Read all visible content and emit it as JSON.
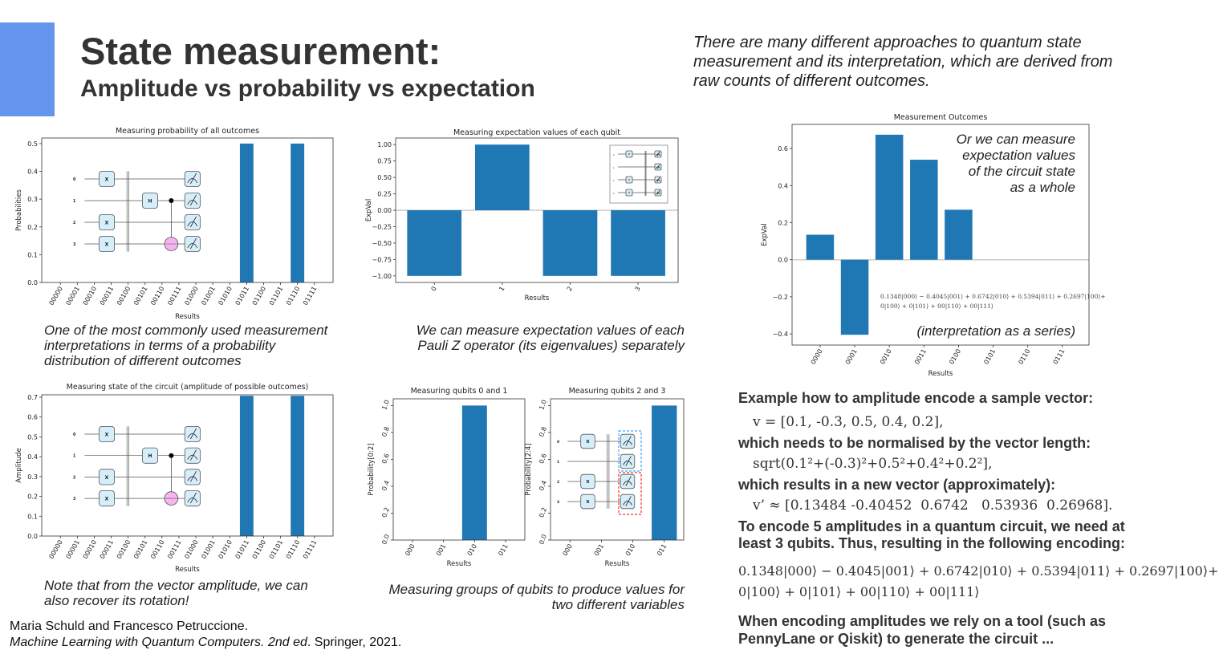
{
  "slide": {
    "title": "State measurement:",
    "subtitle": "Amplitude vs probability vs expectation",
    "intro": "There are many different approaches to quantum state measurement and its interpretation, which are derived from raw counts of different outcomes.",
    "accent_color": "#6495ed"
  },
  "captions": {
    "probability": "One of the most commonly used measurement interpretations in terms of a probability distribution of different outcomes",
    "expectation": "We can measure expectation values of each Pauli Z operator (its eigenvalues) separately",
    "amplitude": "Note that from the vector amplitude, we can also recover its rotation!",
    "groups": "Measuring groups of qubits to produce values for two different variables"
  },
  "citation": {
    "authors": "Maria Schuld and Francesco Petruccione.",
    "book": "Machine Learning with Quantum Computers. 2nd ed",
    "rest": ". Springer, 2021."
  },
  "circuit": {
    "wire_labels": [
      "0",
      "1",
      "2",
      "3"
    ],
    "x_gate": "X",
    "h_gate": "H"
  },
  "chart_notes": {
    "whole_state": [
      "Or we can measure",
      "expectation values",
      "of the circuit state",
      "as a whole"
    ],
    "series_formula_1": "0.1348|000⟩ − 0.4045|001⟩ + 0.6742|010⟩ + 0.5394|011⟩ + 0.2697|100⟩+",
    "series_formula_2": "0|100⟩ + 0|101⟩ + 00|110⟩ + 00|111⟩",
    "series_label": "(interpretation as a series)"
  },
  "encoding": {
    "heading": "Example how to amplitude encode a sample vector:",
    "vector": "v = [0.1, -0.3, 0.5, 0.4, 0.2],",
    "normalise": "which needs to be normalised by the vector length:",
    "sqrt": "sqrt(0.1²+(-0.3)²+0.5²+0.4²+0.2²],",
    "results_in": "which results in a new vector (approximately):",
    "new_vector": "v’ ≈ [0.13484 -0.40452  0.6742   0.53936  0.26968].",
    "qubits_1": "To encode 5 amplitudes in a quantum circuit, we need at",
    "qubits_2": "least 3 qubits. Thus, resulting in the following encoding:",
    "formula_1": "0.1348|000⟩ − 0.4045|001⟩ + 0.6742|010⟩ + 0.5394|011⟩ + 0.2697|100⟩+",
    "formula_2": "0|100⟩ + 0|101⟩ + 00|110⟩ + 00|111⟩",
    "tool_1": "When encoding amplitudes we rely on a tool (such as",
    "tool_2": "PennyLane or Qiskit) to generate the circuit ..."
  },
  "chart_data": [
    {
      "id": "probability",
      "type": "bar",
      "title": "Measuring probability of all outcomes",
      "xlabel": "Results",
      "ylabel": "Probabilities",
      "categories": [
        "00000",
        "00001",
        "00010",
        "00011",
        "00100",
        "00101",
        "00110",
        "00111",
        "01000",
        "01001",
        "01010",
        "01011",
        "01100",
        "01101",
        "01110",
        "01111"
      ],
      "values": [
        0,
        0,
        0,
        0,
        0,
        0,
        0,
        0,
        0,
        0,
        0,
        0.5,
        0,
        0,
        0.5,
        0
      ],
      "ylim": [
        0,
        0.52
      ],
      "yticks": [
        0.0,
        0.1,
        0.2,
        0.3,
        0.4,
        0.5
      ],
      "ytick_labels": [
        "0.0",
        "0.1",
        "0.2",
        "0.3",
        "0.4",
        "0.5"
      ],
      "bar_color": "#1f77b4",
      "grid": false
    },
    {
      "id": "expectation",
      "type": "bar",
      "title": "Measuring expectation values of each qubit",
      "xlabel": "Results",
      "ylabel": "ExpVal",
      "categories": [
        "0",
        "1",
        "2",
        "3"
      ],
      "values": [
        -1,
        1,
        -1,
        -1
      ],
      "ylim": [
        -1.1,
        1.1
      ],
      "yticks": [
        -1,
        -0.75,
        -0.5,
        -0.25,
        0,
        0.25,
        0.5,
        0.75,
        1
      ],
      "ytick_labels": [
        "−1.00",
        "−0.75",
        "−0.50",
        "−0.25",
        "0.00",
        "0.25",
        "0.50",
        "0.75",
        "1.00"
      ],
      "bar_color": "#1f77b4",
      "grid": false
    },
    {
      "id": "amplitude",
      "type": "bar",
      "title": "Measuring state of the circuit (amplitude of possible outcomes)",
      "xlabel": "Results",
      "ylabel": "Amplitude",
      "categories": [
        "00000",
        "00001",
        "00010",
        "00011",
        "00100",
        "00101",
        "00110",
        "00111",
        "01000",
        "01001",
        "01010",
        "01011",
        "01100",
        "01101",
        "01110",
        "01111"
      ],
      "values": [
        0,
        0,
        0,
        0,
        0,
        0,
        0,
        0,
        0,
        0,
        0,
        0.707,
        0,
        0,
        0.707,
        0
      ],
      "ylim": [
        0,
        0.712
      ],
      "yticks": [
        0.0,
        0.1,
        0.2,
        0.3,
        0.4,
        0.5,
        0.6,
        0.7
      ],
      "ytick_labels": [
        "0.0",
        "0.1",
        "0.2",
        "0.3",
        "0.4",
        "0.5",
        "0.6",
        "0.7"
      ],
      "bar_color": "#1f77b4",
      "grid": false
    },
    {
      "id": "qubits01",
      "type": "bar",
      "title": "Measuring qubits 0 and 1",
      "xlabel": "Results",
      "ylabel": "Probability[0:2]",
      "categories": [
        "000",
        "001",
        "010",
        "011"
      ],
      "values": [
        0,
        0,
        1.0,
        0
      ],
      "ylim": [
        0,
        1.05
      ],
      "yticks": [
        0.0,
        0.2,
        0.4,
        0.6,
        0.8,
        1.0
      ],
      "ytick_labels": [
        "0.0",
        "0.2",
        "0.4",
        "0.6",
        "0.8",
        "1.0"
      ],
      "bar_color": "#1f77b4",
      "grid": false
    },
    {
      "id": "qubits23",
      "type": "bar",
      "title": "Measuring qubits 2 and 3",
      "xlabel": "Results",
      "ylabel": "Probability[2:4]",
      "categories": [
        "000",
        "001",
        "010",
        "011"
      ],
      "values": [
        0,
        0,
        0,
        1.0
      ],
      "ylim": [
        0,
        1.05
      ],
      "yticks": [
        0.0,
        0.2,
        0.4,
        0.6,
        0.8,
        1.0
      ],
      "ytick_labels": [
        "0.0",
        "0.2",
        "0.4",
        "0.6",
        "0.8",
        "1.0"
      ],
      "bar_color": "#1f77b4",
      "grid": false
    },
    {
      "id": "outcomes",
      "type": "bar",
      "title": "Measurement Outcomes",
      "xlabel": "Results",
      "ylabel": "ExpVal",
      "categories": [
        "0000",
        "0001",
        "0010",
        "0011",
        "0100",
        "0101",
        "0110",
        "0111"
      ],
      "values": [
        0.1348,
        -0.4045,
        0.6742,
        0.5394,
        0.2697,
        0,
        0,
        0
      ],
      "ylim": [
        -0.46,
        0.73
      ],
      "yticks": [
        -0.4,
        -0.2,
        0.0,
        0.2,
        0.4,
        0.6
      ],
      "ytick_labels": [
        "−0.4",
        "−0.2",
        "0.0",
        "0.2",
        "0.4",
        "0.6"
      ],
      "bar_color": "#1f77b4",
      "grid": false
    }
  ]
}
